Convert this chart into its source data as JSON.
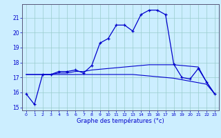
{
  "xlabel": "Graphe des températures (°c)",
  "hours": [
    0,
    1,
    2,
    3,
    4,
    5,
    6,
    7,
    8,
    9,
    10,
    11,
    12,
    13,
    14,
    15,
    16,
    17,
    18,
    19,
    20,
    21,
    22,
    23
  ],
  "line_curve": [
    15.9,
    15.2,
    17.2,
    17.2,
    17.4,
    17.4,
    17.5,
    17.3,
    17.8,
    19.3,
    19.6,
    20.5,
    20.5,
    20.1,
    21.2,
    21.5,
    21.5,
    21.2,
    17.9,
    17.0,
    16.9,
    17.6,
    16.7,
    15.9
  ],
  "line_flat1": [
    17.2,
    17.2,
    17.2,
    17.2,
    17.2,
    17.2,
    17.2,
    17.2,
    17.2,
    17.2,
    17.2,
    17.2,
    17.2,
    17.2,
    17.15,
    17.1,
    17.05,
    17.0,
    16.95,
    16.85,
    16.75,
    16.65,
    16.55,
    15.9
  ],
  "line_flat2": [
    17.2,
    17.2,
    17.2,
    17.2,
    17.3,
    17.3,
    17.4,
    17.4,
    17.5,
    17.55,
    17.6,
    17.65,
    17.7,
    17.75,
    17.8,
    17.85,
    17.85,
    17.85,
    17.85,
    17.8,
    17.75,
    17.7,
    16.7,
    15.9
  ],
  "ylim": [
    14.8,
    21.9
  ],
  "yticks": [
    15,
    16,
    17,
    18,
    19,
    20,
    21
  ],
  "bg_color": "#cceeff",
  "line_color": "#0000cc",
  "grid_color": "#99cccc"
}
